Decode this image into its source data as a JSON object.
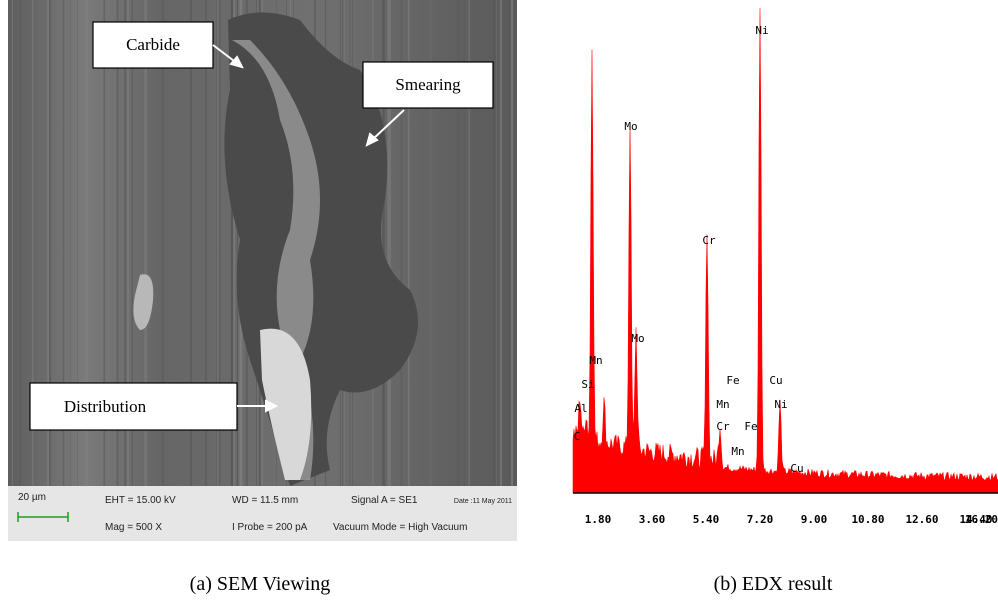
{
  "sem": {
    "callouts": [
      "Carbide",
      "Smearing",
      "Distribution"
    ],
    "info_bar": {
      "scale": "20 µm",
      "eht": "EHT = 15.00 kV",
      "mag": "Mag =   500 X",
      "wd": "WD = 11.5 mm",
      "probe": "I Probe =   200 pA",
      "signal": "Signal A = SE1",
      "vacuum": "Vacuum Mode = High Vacuum",
      "date": "Date :11 May 2011"
    },
    "caption": "(a) SEM Viewing"
  },
  "edx": {
    "x_tick_labels": [
      "1.80",
      "3.60",
      "5.40",
      "7.20",
      "9.00",
      "10.80",
      "12.60",
      "14.40",
      "16.20"
    ],
    "peak_labels": [
      "Ni",
      "Mo",
      "Cr",
      "Mo",
      "Mn",
      "Si",
      "Al",
      "C",
      "Fe",
      "Mn",
      "Cr",
      "Mn",
      "Fe",
      "Cu",
      "Ni",
      "Cu"
    ],
    "caption": "(b) EDX result"
  }
}
